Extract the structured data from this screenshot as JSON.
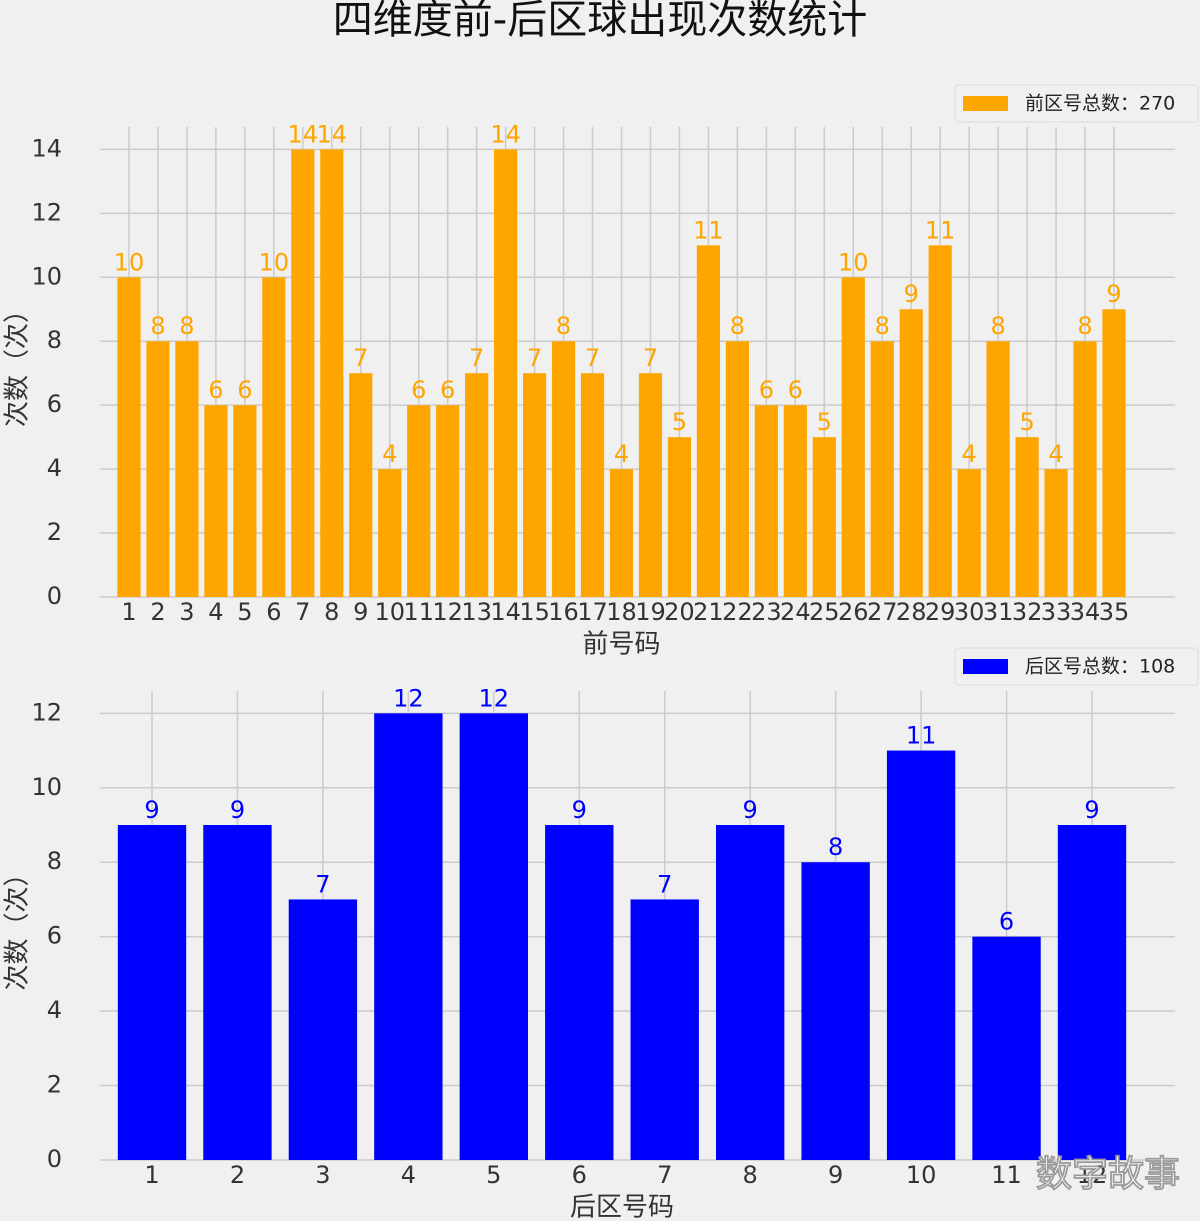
{
  "title": "四维度前-后区球出现次数统计",
  "watermark": "数字故事",
  "chart_data": [
    {
      "type": "bar",
      "xlabel": "前号码",
      "ylabel": "次数（次）",
      "categories": [
        "1",
        "2",
        "3",
        "4",
        "5",
        "6",
        "7",
        "8",
        "9",
        "10",
        "11",
        "12",
        "13",
        "14",
        "15",
        "16",
        "17",
        "18",
        "19",
        "20",
        "21",
        "22",
        "23",
        "24",
        "25",
        "26",
        "27",
        "28",
        "29",
        "30",
        "31",
        "32",
        "33",
        "34",
        "35"
      ],
      "series": [
        {
          "name": "前区号总数：270",
          "color": "#ffa500",
          "values": [
            10,
            8,
            8,
            6,
            6,
            10,
            14,
            14,
            7,
            4,
            6,
            6,
            7,
            14,
            7,
            8,
            7,
            4,
            7,
            5,
            11,
            8,
            6,
            6,
            5,
            10,
            8,
            9,
            11,
            4,
            8,
            5,
            4,
            8,
            9
          ]
        }
      ],
      "ylim": [
        0,
        14.7
      ],
      "yticks": [
        0,
        2,
        4,
        6,
        8,
        10,
        12,
        14
      ],
      "grid": true,
      "legend": "upper right"
    },
    {
      "type": "bar",
      "xlabel": "后区号码",
      "ylabel": "次数（次）",
      "categories": [
        "1",
        "2",
        "3",
        "4",
        "5",
        "6",
        "7",
        "8",
        "9",
        "10",
        "11",
        "12"
      ],
      "series": [
        {
          "name": "后区号总数：108",
          "color": "#0000ff",
          "values": [
            9,
            9,
            7,
            12,
            12,
            9,
            7,
            9,
            8,
            11,
            6,
            9
          ]
        }
      ],
      "ylim": [
        0,
        12.6
      ],
      "yticks": [
        0,
        2,
        4,
        6,
        8,
        10,
        12
      ],
      "grid": true,
      "legend": "upper right"
    }
  ]
}
